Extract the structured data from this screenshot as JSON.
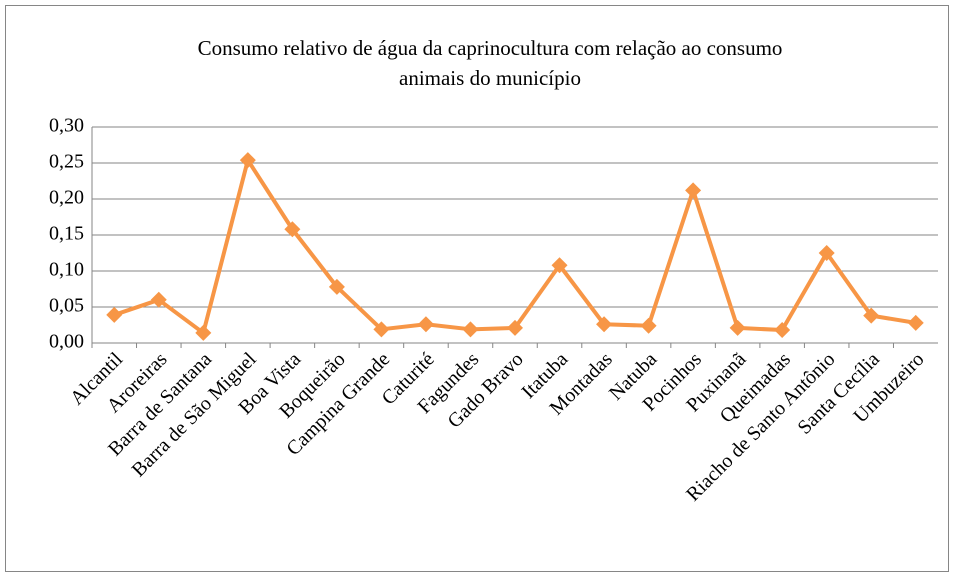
{
  "chart_data": {
    "type": "line",
    "title": [
      "Consumo relativo de água da caprinocultura com relação ao consumo",
      "animais do município"
    ],
    "categories": [
      "Alcantil",
      "Aroreiras",
      "Barra de Santana",
      "Barra de São Miguel",
      "Boa Vista",
      "Boqueirão",
      "Campina Grande",
      "Caturité",
      "Fagundes",
      "Gado Bravo",
      "Itatuba",
      "Montadas",
      "Natuba",
      "Pocinhos",
      "Puxinanã",
      "Queimadas",
      "Riacho de Santo Antônio",
      "Santa Cecília",
      "Umbuzeiro"
    ],
    "values": [
      0.039,
      0.06,
      0.014,
      0.254,
      0.158,
      0.078,
      0.019,
      0.026,
      0.019,
      0.021,
      0.108,
      0.026,
      0.024,
      0.212,
      0.021,
      0.018,
      0.125,
      0.038,
      0.028
    ],
    "color": "#f79646",
    "ylim": [
      0,
      0.3
    ],
    "yticks": [
      {
        "value": 0,
        "label": "0,00"
      },
      {
        "value": 0.05,
        "label": "0,05"
      },
      {
        "value": 0.1,
        "label": "0,10"
      },
      {
        "value": 0.15,
        "label": "0,15"
      },
      {
        "value": 0.2,
        "label": "0,20"
      },
      {
        "value": 0.25,
        "label": "0,25"
      },
      {
        "value": 0.3,
        "label": "0,30"
      }
    ],
    "grid": true
  }
}
